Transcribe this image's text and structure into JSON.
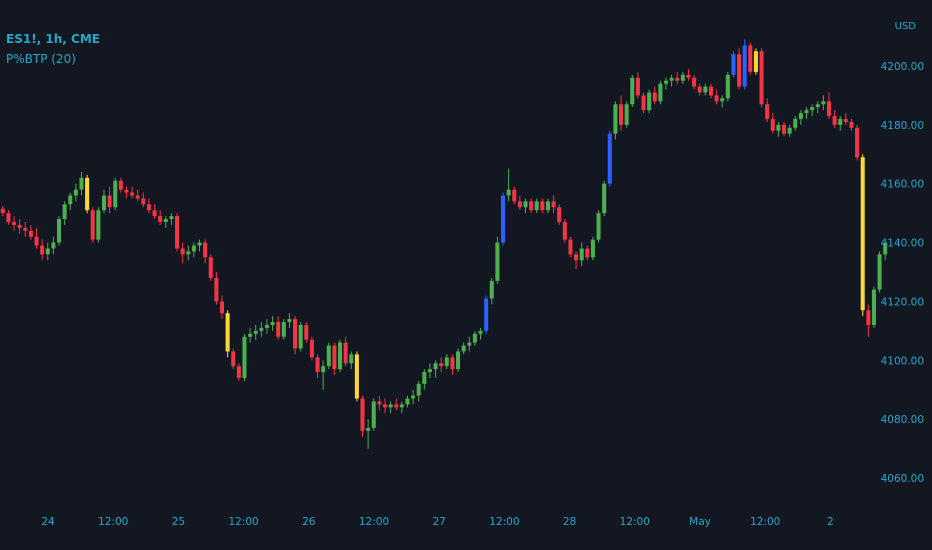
{
  "legend": {
    "symbol": "ES1!, 1h, CME",
    "indicator": "P%BTP (20)"
  },
  "axis": {
    "currency": "USD"
  },
  "colors": {
    "background": "#131722",
    "up": "#4caf50",
    "down": "#f23645",
    "blue": "#2962ff",
    "yellow": "#fdd835",
    "axis_text": "#26a7c7"
  },
  "chart_data": {
    "type": "candlestick",
    "title": "",
    "ylim": [
      4050,
      4220
    ],
    "y_ticks": [
      4060,
      4080,
      4100,
      4120,
      4140,
      4160,
      4180,
      4200
    ],
    "x_tick_labels": [
      "24",
      "12:00",
      "25",
      "12:00",
      "26",
      "12:00",
      "27",
      "12:00",
      "28",
      "12:00",
      "May",
      "12:00",
      "2"
    ],
    "grid": false,
    "colors_legend": {
      "up": "green",
      "down": "red",
      "strong_up": "blue",
      "extreme": "yellow"
    },
    "candles": [
      {
        "o": 4151.5,
        "h": 4152.5,
        "l": 4149,
        "c": 4150,
        "color": "red"
      },
      {
        "o": 4150,
        "h": 4151,
        "l": 4146,
        "c": 4147,
        "color": "red"
      },
      {
        "o": 4147,
        "h": 4149,
        "l": 4144,
        "c": 4146,
        "color": "red"
      },
      {
        "o": 4146,
        "h": 4148,
        "l": 4143,
        "c": 4145,
        "color": "red"
      },
      {
        "o": 4145,
        "h": 4147,
        "l": 4142,
        "c": 4144,
        "color": "red"
      },
      {
        "o": 4144,
        "h": 4146,
        "l": 4141,
        "c": 4142,
        "color": "red"
      },
      {
        "o": 4142,
        "h": 4145,
        "l": 4138,
        "c": 4139,
        "color": "red"
      },
      {
        "o": 4139,
        "h": 4141,
        "l": 4134,
        "c": 4136,
        "color": "red"
      },
      {
        "o": 4136,
        "h": 4140,
        "l": 4134,
        "c": 4138,
        "color": "green"
      },
      {
        "o": 4138,
        "h": 4142,
        "l": 4136,
        "c": 4140,
        "color": "green"
      },
      {
        "o": 4140,
        "h": 4149,
        "l": 4139,
        "c": 4148,
        "color": "green"
      },
      {
        "o": 4148,
        "h": 4154,
        "l": 4146,
        "c": 4153,
        "color": "green"
      },
      {
        "o": 4153,
        "h": 4157,
        "l": 4151,
        "c": 4156,
        "color": "green"
      },
      {
        "o": 4156,
        "h": 4160,
        "l": 4154,
        "c": 4158,
        "color": "green"
      },
      {
        "o": 4158,
        "h": 4164,
        "l": 4156,
        "c": 4162,
        "color": "green"
      },
      {
        "o": 4162,
        "h": 4163,
        "l": 4150,
        "c": 4151,
        "color": "yellow"
      },
      {
        "o": 4151,
        "h": 4152,
        "l": 4140,
        "c": 4141,
        "color": "red"
      },
      {
        "o": 4141,
        "h": 4152,
        "l": 4140,
        "c": 4151,
        "color": "green"
      },
      {
        "o": 4151,
        "h": 4158,
        "l": 4150,
        "c": 4156,
        "color": "green"
      },
      {
        "o": 4156,
        "h": 4159,
        "l": 4150,
        "c": 4152,
        "color": "red"
      },
      {
        "o": 4152,
        "h": 4162,
        "l": 4151,
        "c": 4161,
        "color": "green"
      },
      {
        "o": 4161,
        "h": 4162,
        "l": 4157,
        "c": 4158,
        "color": "red"
      },
      {
        "o": 4158,
        "h": 4159,
        "l": 4155,
        "c": 4157,
        "color": "red"
      },
      {
        "o": 4157,
        "h": 4159,
        "l": 4155,
        "c": 4156,
        "color": "red"
      },
      {
        "o": 4156,
        "h": 4158,
        "l": 4154,
        "c": 4155,
        "color": "red"
      },
      {
        "o": 4155,
        "h": 4157,
        "l": 4152,
        "c": 4153,
        "color": "red"
      },
      {
        "o": 4153,
        "h": 4155,
        "l": 4150,
        "c": 4151,
        "color": "red"
      },
      {
        "o": 4151,
        "h": 4153,
        "l": 4148,
        "c": 4149,
        "color": "red"
      },
      {
        "o": 4149,
        "h": 4151,
        "l": 4146,
        "c": 4147,
        "color": "red"
      },
      {
        "o": 4147,
        "h": 4149,
        "l": 4145,
        "c": 4148,
        "color": "green"
      },
      {
        "o": 4148,
        "h": 4150,
        "l": 4146,
        "c": 4149,
        "color": "green"
      },
      {
        "o": 4149,
        "h": 4150,
        "l": 4137,
        "c": 4138,
        "color": "red"
      },
      {
        "o": 4138,
        "h": 4140,
        "l": 4133,
        "c": 4136,
        "color": "red"
      },
      {
        "o": 4136,
        "h": 4139,
        "l": 4134,
        "c": 4137,
        "color": "green"
      },
      {
        "o": 4137,
        "h": 4140,
        "l": 4135,
        "c": 4139,
        "color": "green"
      },
      {
        "o": 4139,
        "h": 4141,
        "l": 4137,
        "c": 4140,
        "color": "green"
      },
      {
        "o": 4140,
        "h": 4141,
        "l": 4133,
        "c": 4135,
        "color": "red"
      },
      {
        "o": 4135,
        "h": 4136,
        "l": 4127,
        "c": 4128,
        "color": "red"
      },
      {
        "o": 4128,
        "h": 4130,
        "l": 4119,
        "c": 4120,
        "color": "red"
      },
      {
        "o": 4120,
        "h": 4122,
        "l": 4114,
        "c": 4116,
        "color": "red"
      },
      {
        "o": 4116,
        "h": 4117,
        "l": 4101,
        "c": 4103,
        "color": "yellow"
      },
      {
        "o": 4103,
        "h": 4104,
        "l": 4097,
        "c": 4098,
        "color": "red"
      },
      {
        "o": 4098,
        "h": 4099,
        "l": 4093,
        "c": 4094,
        "color": "red"
      },
      {
        "o": 4094,
        "h": 4109,
        "l": 4093,
        "c": 4108,
        "color": "green"
      },
      {
        "o": 4108,
        "h": 4111,
        "l": 4106,
        "c": 4109,
        "color": "green"
      },
      {
        "o": 4109,
        "h": 4112,
        "l": 4107,
        "c": 4110,
        "color": "green"
      },
      {
        "o": 4110,
        "h": 4113,
        "l": 4108,
        "c": 4111,
        "color": "green"
      },
      {
        "o": 4111,
        "h": 4114,
        "l": 4109,
        "c": 4112,
        "color": "green"
      },
      {
        "o": 4112,
        "h": 4115,
        "l": 4110,
        "c": 4113,
        "color": "green"
      },
      {
        "o": 4113,
        "h": 4115,
        "l": 4107,
        "c": 4108,
        "color": "red"
      },
      {
        "o": 4108,
        "h": 4114,
        "l": 4107,
        "c": 4113,
        "color": "green"
      },
      {
        "o": 4113,
        "h": 4116,
        "l": 4111,
        "c": 4114,
        "color": "green"
      },
      {
        "o": 4114,
        "h": 4115,
        "l": 4102,
        "c": 4104,
        "color": "red"
      },
      {
        "o": 4104,
        "h": 4113,
        "l": 4103,
        "c": 4112,
        "color": "green"
      },
      {
        "o": 4112,
        "h": 4113,
        "l": 4106,
        "c": 4107,
        "color": "red"
      },
      {
        "o": 4107,
        "h": 4108,
        "l": 4100,
        "c": 4101,
        "color": "red"
      },
      {
        "o": 4101,
        "h": 4102,
        "l": 4094,
        "c": 4096,
        "color": "red"
      },
      {
        "o": 4096,
        "h": 4100,
        "l": 4090,
        "c": 4098,
        "color": "green"
      },
      {
        "o": 4098,
        "h": 4106,
        "l": 4097,
        "c": 4105,
        "color": "green"
      },
      {
        "o": 4105,
        "h": 4106,
        "l": 4095,
        "c": 4097,
        "color": "red"
      },
      {
        "o": 4097,
        "h": 4107,
        "l": 4096,
        "c": 4106,
        "color": "green"
      },
      {
        "o": 4106,
        "h": 4108,
        "l": 4098,
        "c": 4099,
        "color": "red"
      },
      {
        "o": 4099,
        "h": 4103,
        "l": 4097,
        "c": 4102,
        "color": "green"
      },
      {
        "o": 4102,
        "h": 4103,
        "l": 4086,
        "c": 4087,
        "color": "yellow"
      },
      {
        "o": 4087,
        "h": 4088,
        "l": 4074,
        "c": 4076,
        "color": "red"
      },
      {
        "o": 4076,
        "h": 4080,
        "l": 4070,
        "c": 4077,
        "color": "green"
      },
      {
        "o": 4077,
        "h": 4087,
        "l": 4076,
        "c": 4086,
        "color": "green"
      },
      {
        "o": 4086,
        "h": 4088,
        "l": 4083,
        "c": 4085,
        "color": "red"
      },
      {
        "o": 4085,
        "h": 4087,
        "l": 4082,
        "c": 4084,
        "color": "red"
      },
      {
        "o": 4084,
        "h": 4086,
        "l": 4082,
        "c": 4085,
        "color": "green"
      },
      {
        "o": 4085,
        "h": 4087,
        "l": 4083,
        "c": 4084,
        "color": "red"
      },
      {
        "o": 4084,
        "h": 4086,
        "l": 4082,
        "c": 4085,
        "color": "green"
      },
      {
        "o": 4085,
        "h": 4088,
        "l": 4084,
        "c": 4087,
        "color": "green"
      },
      {
        "o": 4087,
        "h": 4090,
        "l": 4085,
        "c": 4088,
        "color": "green"
      },
      {
        "o": 4088,
        "h": 4093,
        "l": 4086,
        "c": 4092,
        "color": "green"
      },
      {
        "o": 4092,
        "h": 4097,
        "l": 4090,
        "c": 4096,
        "color": "green"
      },
      {
        "o": 4096,
        "h": 4099,
        "l": 4094,
        "c": 4097,
        "color": "green"
      },
      {
        "o": 4097,
        "h": 4100,
        "l": 4094,
        "c": 4099,
        "color": "green"
      },
      {
        "o": 4099,
        "h": 4101,
        "l": 4096,
        "c": 4098,
        "color": "red"
      },
      {
        "o": 4098,
        "h": 4102,
        "l": 4097,
        "c": 4101,
        "color": "green"
      },
      {
        "o": 4101,
        "h": 4102,
        "l": 4095,
        "c": 4097,
        "color": "red"
      },
      {
        "o": 4097,
        "h": 4104,
        "l": 4096,
        "c": 4103,
        "color": "green"
      },
      {
        "o": 4103,
        "h": 4106,
        "l": 4102,
        "c": 4105,
        "color": "green"
      },
      {
        "o": 4105,
        "h": 4108,
        "l": 4103,
        "c": 4106,
        "color": "green"
      },
      {
        "o": 4106,
        "h": 4110,
        "l": 4105,
        "c": 4109,
        "color": "green"
      },
      {
        "o": 4109,
        "h": 4111,
        "l": 4107,
        "c": 4110,
        "color": "green"
      },
      {
        "o": 4110,
        "h": 4122,
        "l": 4109,
        "c": 4121,
        "color": "blue"
      },
      {
        "o": 4121,
        "h": 4128,
        "l": 4119,
        "c": 4127,
        "color": "green"
      },
      {
        "o": 4127,
        "h": 4142,
        "l": 4126,
        "c": 4140,
        "color": "green"
      },
      {
        "o": 4140,
        "h": 4157,
        "l": 4139,
        "c": 4156,
        "color": "blue"
      },
      {
        "o": 4156,
        "h": 4165,
        "l": 4154,
        "c": 4158,
        "color": "green"
      },
      {
        "o": 4158,
        "h": 4159,
        "l": 4153,
        "c": 4154,
        "color": "red"
      },
      {
        "o": 4154,
        "h": 4156,
        "l": 4151,
        "c": 4152,
        "color": "red"
      },
      {
        "o": 4152,
        "h": 4155,
        "l": 4150,
        "c": 4154,
        "color": "green"
      },
      {
        "o": 4154,
        "h": 4155,
        "l": 4150,
        "c": 4151,
        "color": "red"
      },
      {
        "o": 4151,
        "h": 4155,
        "l": 4150,
        "c": 4154,
        "color": "green"
      },
      {
        "o": 4154,
        "h": 4155,
        "l": 4150,
        "c": 4151,
        "color": "red"
      },
      {
        "o": 4151,
        "h": 4155,
        "l": 4150,
        "c": 4154,
        "color": "green"
      },
      {
        "o": 4154,
        "h": 4156,
        "l": 4150,
        "c": 4152,
        "color": "red"
      },
      {
        "o": 4152,
        "h": 4153,
        "l": 4146,
        "c": 4147,
        "color": "red"
      },
      {
        "o": 4147,
        "h": 4148,
        "l": 4140,
        "c": 4141,
        "color": "red"
      },
      {
        "o": 4141,
        "h": 4142,
        "l": 4135,
        "c": 4136,
        "color": "red"
      },
      {
        "o": 4136,
        "h": 4137,
        "l": 4131,
        "c": 4134,
        "color": "red"
      },
      {
        "o": 4134,
        "h": 4140,
        "l": 4132,
        "c": 4138,
        "color": "green"
      },
      {
        "o": 4138,
        "h": 4139,
        "l": 4134,
        "c": 4135,
        "color": "red"
      },
      {
        "o": 4135,
        "h": 4142,
        "l": 4134,
        "c": 4141,
        "color": "green"
      },
      {
        "o": 4141,
        "h": 4151,
        "l": 4140,
        "c": 4150,
        "color": "green"
      },
      {
        "o": 4150,
        "h": 4161,
        "l": 4149,
        "c": 4160,
        "color": "green"
      },
      {
        "o": 4160,
        "h": 4178,
        "l": 4159,
        "c": 4177,
        "color": "blue"
      },
      {
        "o": 4177,
        "h": 4188,
        "l": 4175,
        "c": 4187,
        "color": "green"
      },
      {
        "o": 4187,
        "h": 4190,
        "l": 4178,
        "c": 4180,
        "color": "red"
      },
      {
        "o": 4180,
        "h": 4188,
        "l": 4179,
        "c": 4187,
        "color": "green"
      },
      {
        "o": 4187,
        "h": 4197,
        "l": 4186,
        "c": 4196,
        "color": "green"
      },
      {
        "o": 4196,
        "h": 4198,
        "l": 4189,
        "c": 4190,
        "color": "red"
      },
      {
        "o": 4190,
        "h": 4191,
        "l": 4184,
        "c": 4185,
        "color": "red"
      },
      {
        "o": 4185,
        "h": 4192,
        "l": 4184,
        "c": 4191,
        "color": "green"
      },
      {
        "o": 4191,
        "h": 4193,
        "l": 4187,
        "c": 4188,
        "color": "red"
      },
      {
        "o": 4188,
        "h": 4195,
        "l": 4187,
        "c": 4194,
        "color": "green"
      },
      {
        "o": 4194,
        "h": 4196,
        "l": 4192,
        "c": 4195,
        "color": "green"
      },
      {
        "o": 4195,
        "h": 4197,
        "l": 4193,
        "c": 4196,
        "color": "green"
      },
      {
        "o": 4196,
        "h": 4198,
        "l": 4194,
        "c": 4195,
        "color": "red"
      },
      {
        "o": 4195,
        "h": 4198,
        "l": 4194,
        "c": 4197,
        "color": "green"
      },
      {
        "o": 4197,
        "h": 4199,
        "l": 4195,
        "c": 4196,
        "color": "red"
      },
      {
        "o": 4196,
        "h": 4197,
        "l": 4192,
        "c": 4193,
        "color": "red"
      },
      {
        "o": 4193,
        "h": 4194,
        "l": 4190,
        "c": 4191,
        "color": "red"
      },
      {
        "o": 4191,
        "h": 4194,
        "l": 4190,
        "c": 4193,
        "color": "green"
      },
      {
        "o": 4193,
        "h": 4194,
        "l": 4189,
        "c": 4190,
        "color": "red"
      },
      {
        "o": 4190,
        "h": 4192,
        "l": 4187,
        "c": 4188,
        "color": "red"
      },
      {
        "o": 4188,
        "h": 4190,
        "l": 4186,
        "c": 4189,
        "color": "green"
      },
      {
        "o": 4189,
        "h": 4198,
        "l": 4188,
        "c": 4197,
        "color": "green"
      },
      {
        "o": 4197,
        "h": 4205,
        "l": 4196,
        "c": 4204,
        "color": "blue"
      },
      {
        "o": 4204,
        "h": 4206,
        "l": 4192,
        "c": 4193,
        "color": "red"
      },
      {
        "o": 4193,
        "h": 4209,
        "l": 4192,
        "c": 4207,
        "color": "blue"
      },
      {
        "o": 4207,
        "h": 4208,
        "l": 4197,
        "c": 4198,
        "color": "red"
      },
      {
        "o": 4198,
        "h": 4206,
        "l": 4197,
        "c": 4205,
        "color": "yellow"
      },
      {
        "o": 4205,
        "h": 4206,
        "l": 4186,
        "c": 4187,
        "color": "red"
      },
      {
        "o": 4187,
        "h": 4189,
        "l": 4181,
        "c": 4182,
        "color": "red"
      },
      {
        "o": 4182,
        "h": 4184,
        "l": 4177,
        "c": 4178,
        "color": "red"
      },
      {
        "o": 4178,
        "h": 4181,
        "l": 4176,
        "c": 4180,
        "color": "green"
      },
      {
        "o": 4180,
        "h": 4181,
        "l": 4176,
        "c": 4177,
        "color": "red"
      },
      {
        "o": 4177,
        "h": 4180,
        "l": 4176,
        "c": 4179,
        "color": "green"
      },
      {
        "o": 4179,
        "h": 4183,
        "l": 4178,
        "c": 4182,
        "color": "green"
      },
      {
        "o": 4182,
        "h": 4185,
        "l": 4180,
        "c": 4184,
        "color": "green"
      },
      {
        "o": 4184,
        "h": 4186,
        "l": 4182,
        "c": 4185,
        "color": "green"
      },
      {
        "o": 4185,
        "h": 4187,
        "l": 4183,
        "c": 4186,
        "color": "green"
      },
      {
        "o": 4186,
        "h": 4188,
        "l": 4184,
        "c": 4187,
        "color": "green"
      },
      {
        "o": 4187,
        "h": 4190,
        "l": 4185,
        "c": 4188,
        "color": "green"
      },
      {
        "o": 4188,
        "h": 4191,
        "l": 4182,
        "c": 4183,
        "color": "red"
      },
      {
        "o": 4183,
        "h": 4185,
        "l": 4179,
        "c": 4180,
        "color": "red"
      },
      {
        "o": 4180,
        "h": 4183,
        "l": 4178,
        "c": 4182,
        "color": "green"
      },
      {
        "o": 4182,
        "h": 4184,
        "l": 4180,
        "c": 4181,
        "color": "red"
      },
      {
        "o": 4181,
        "h": 4182,
        "l": 4178,
        "c": 4179,
        "color": "red"
      },
      {
        "o": 4179,
        "h": 4180,
        "l": 4168,
        "c": 4169,
        "color": "red"
      },
      {
        "o": 4169,
        "h": 4170,
        "l": 4115,
        "c": 4117,
        "color": "yellow"
      },
      {
        "o": 4117,
        "h": 4119,
        "l": 4108,
        "c": 4112,
        "color": "red"
      },
      {
        "o": 4112,
        "h": 4125,
        "l": 4111,
        "c": 4124,
        "color": "green"
      },
      {
        "o": 4124,
        "h": 4137,
        "l": 4123,
        "c": 4136,
        "color": "green"
      },
      {
        "o": 4136,
        "h": 4141,
        "l": 4134,
        "c": 4140,
        "color": "green"
      }
    ]
  }
}
